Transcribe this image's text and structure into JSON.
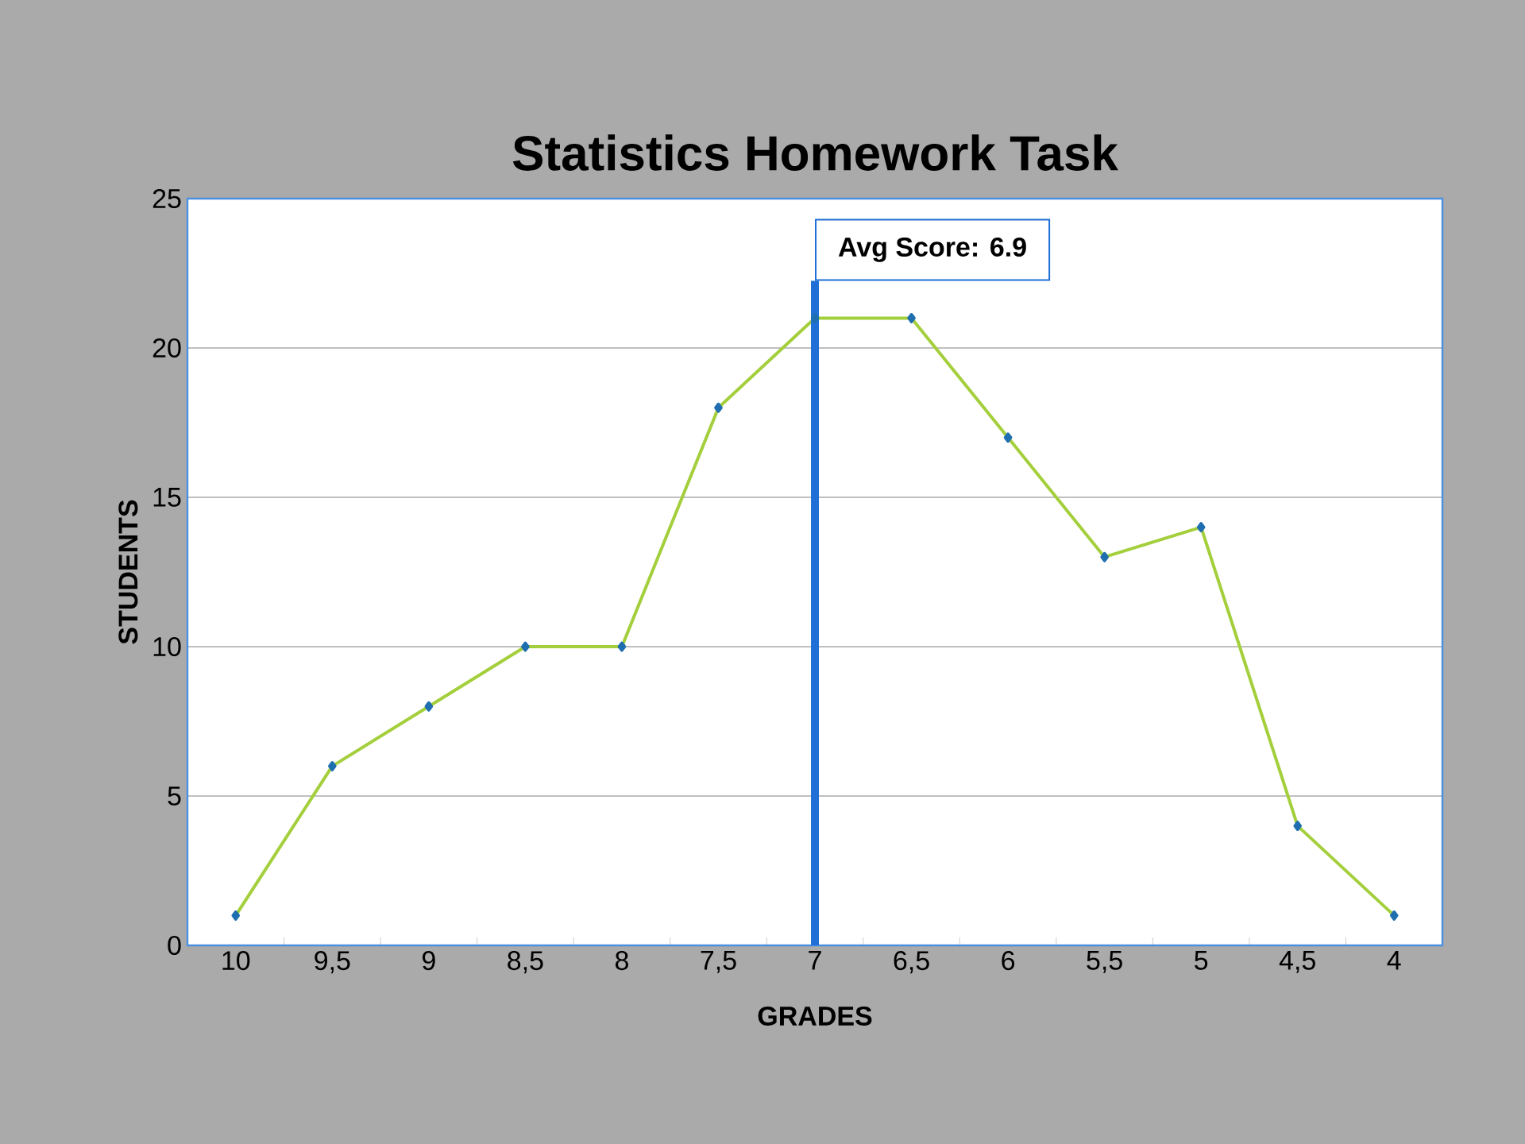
{
  "chart_data": {
    "type": "line",
    "title": "Statistics Homework Task",
    "xlabel": "GRADES",
    "ylabel": "STUDENTS",
    "categories": [
      "10",
      "9,5",
      "9",
      "8,5",
      "8",
      "7,5",
      "7",
      "6,5",
      "6",
      "5,5",
      "5",
      "4,5",
      "4"
    ],
    "series": [
      {
        "color": "#a4cf3c",
        "values": [
          1,
          6,
          8,
          10,
          10,
          18,
          21,
          21,
          17,
          13,
          14,
          4,
          1
        ]
      }
    ],
    "ylim": [
      0,
      25
    ],
    "yticks": [
      0,
      5,
      10,
      15,
      20,
      25
    ],
    "grid": "y",
    "marker": "diamond",
    "line_style": "solid",
    "ref_lines": [
      {
        "axis": "x",
        "value": "7",
        "label": "Avg Score: 6.9",
        "color": "#1f6fd6"
      }
    ]
  }
}
